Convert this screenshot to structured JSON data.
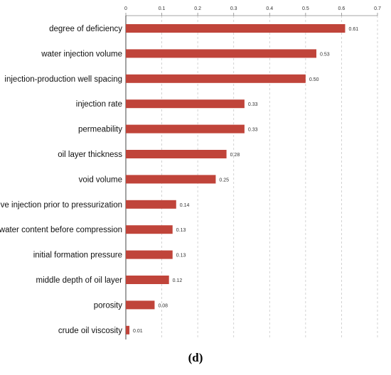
{
  "chart_data": {
    "type": "bar",
    "orientation": "horizontal",
    "title": "",
    "xlabel": "",
    "ylabel": "",
    "categories": [
      "degree of deficiency",
      "water injection volume",
      "injection-production well spacing",
      "injection rate",
      "permeability",
      "oil layer thickness",
      "void volume",
      "cumulative injection prior to pressurization",
      "water content before compression",
      "initial formation pressure",
      "middle depth of oil layer",
      "porosity",
      "crude oil viscosity"
    ],
    "values": [
      0.61,
      0.53,
      0.5,
      0.33,
      0.33,
      0.28,
      0.25,
      0.14,
      0.13,
      0.13,
      0.12,
      0.08,
      0.01
    ],
    "value_labels": [
      "0.61",
      "0.53",
      "0.50",
      "0.33",
      "0.33",
      "0.28",
      "0.25",
      "0.14",
      "0.13",
      "0.13",
      "0.12",
      "0.08",
      "0.01"
    ],
    "xlim": [
      0,
      0.7
    ],
    "x_ticks": [
      "0",
      "0.1",
      "0.2",
      "0.3",
      "0.4",
      "0.5",
      "0.6",
      "0.7"
    ],
    "x_axis_position": "top",
    "grid": "vertical dashed",
    "legend": "none",
    "bar_color": "#c0443a"
  },
  "panel_label": "(d)"
}
